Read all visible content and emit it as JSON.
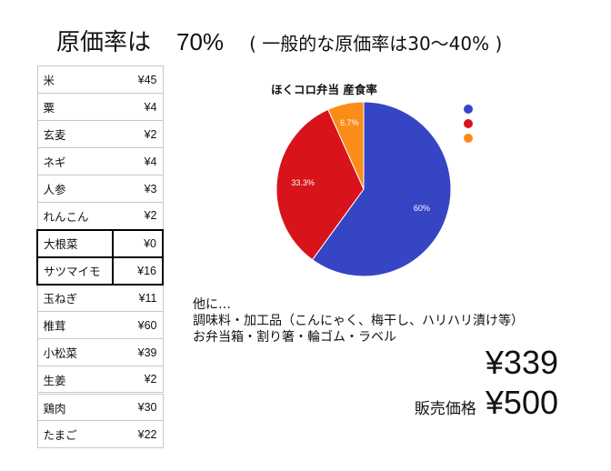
{
  "headline": {
    "label": "原価率は",
    "value": "70%",
    "note": "( 一般的な原価率は30〜40% )"
  },
  "ingredients": [
    {
      "name": "米",
      "price": "¥45"
    },
    {
      "name": "粟",
      "price": "¥4"
    },
    {
      "name": "玄麦",
      "price": "¥2"
    },
    {
      "name": "ネギ",
      "price": "¥4"
    },
    {
      "name": "人参",
      "price": "¥3"
    },
    {
      "name": "れんこん",
      "price": "¥2"
    },
    {
      "name": "大根菜",
      "price": "¥0"
    },
    {
      "name": "サツマイモ",
      "price": "¥16"
    },
    {
      "name": "玉ねぎ",
      "price": "¥11"
    },
    {
      "name": "椎茸",
      "price": "¥60"
    },
    {
      "name": "小松菜",
      "price": "¥39"
    },
    {
      "name": "生姜",
      "price": "¥2"
    },
    {
      "name": "鶏肉",
      "price": "¥30"
    },
    {
      "name": "たまご",
      "price": "¥22"
    }
  ],
  "chart_data": {
    "type": "pie",
    "title": "ほくコロ弁当 産食率",
    "slices": [
      {
        "label": "60%",
        "value": 60,
        "color": "#3645c4"
      },
      {
        "label": "33.3%",
        "value": 33.3,
        "color": "#d9131b"
      },
      {
        "label": "6.7%",
        "value": 6.7,
        "color": "#fb8c18"
      }
    ],
    "legend": {
      "position": "right",
      "entries": [
        "",
        "",
        ""
      ]
    }
  },
  "notes": [
    "他に…",
    "調味料・加工品（こんにゃく、梅干し、ハリハリ漬け等）",
    "お弁当箱・割り箸・輪ゴム・ラベル"
  ],
  "total": "¥339",
  "sale": {
    "label": "販売価格",
    "value": "¥500"
  }
}
